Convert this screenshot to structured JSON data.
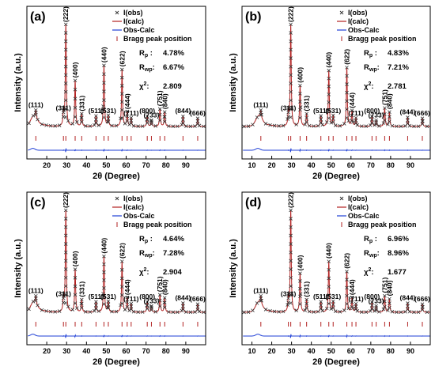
{
  "colors": {
    "obs": "#333333",
    "calc": "#b22222",
    "diff": "#1f3fd6",
    "bragg": "#b22222"
  },
  "legend": {
    "obs": "I(obs)",
    "calc": "I(calc)",
    "diff": "Obs-Calc",
    "bragg": "Bragg peak position"
  },
  "chart_data": [
    {
      "type": "line",
      "panel_label": "(a)",
      "xlabel": "2θ (Degree)",
      "ylabel": "Intensity (a.u.)",
      "xlim": [
        10,
        100
      ],
      "xticks": [
        20,
        30,
        40,
        50,
        60,
        70,
        80,
        90
      ],
      "series": [
        {
          "name": "I(obs)",
          "marker": "x"
        },
        {
          "name": "I(calc)",
          "line": "solid"
        },
        {
          "name": "Obs-Calc",
          "line": "solid"
        },
        {
          "name": "Bragg peak position",
          "marker": "|"
        }
      ],
      "peaks": [
        {
          "hkl": "(111)",
          "x": 14.5,
          "height": 0.07
        },
        {
          "hkl": "(311)",
          "x": 28.4,
          "height": 0.13
        },
        {
          "hkl": "(222)",
          "x": 29.6,
          "height": 1.0
        },
        {
          "hkl": "(400)",
          "x": 34.3,
          "height": 0.45
        },
        {
          "hkl": "(331)",
          "x": 37.6,
          "height": 0.12
        },
        {
          "hkl": "(511)",
          "x": 44.8,
          "height": 0.1
        },
        {
          "hkl": "(440)",
          "x": 48.8,
          "height": 0.6
        },
        {
          "hkl": "(531)",
          "x": 51.0,
          "height": 0.1
        },
        {
          "hkl": "(622)",
          "x": 57.9,
          "height": 0.56
        },
        {
          "hkl": "(444)",
          "x": 60.5,
          "height": 0.14
        },
        {
          "hkl": "(711)",
          "x": 62.5,
          "height": 0.08
        },
        {
          "hkl": "(800)",
          "x": 70.6,
          "height": 0.1
        },
        {
          "hkl": "(733)",
          "x": 72.7,
          "height": 0.06
        },
        {
          "hkl": "(751)",
          "x": 77.0,
          "height": 0.17
        },
        {
          "hkl": "(840)",
          "x": 79.4,
          "height": 0.14
        },
        {
          "hkl": "(844)",
          "x": 88.6,
          "height": 0.1
        },
        {
          "hkl": "(666)",
          "x": 96.0,
          "height": 0.08
        }
      ],
      "stats": {
        "Rp": "4.78%",
        "Rwp": "6.67%",
        "chi2": "2.809"
      }
    },
    {
      "type": "line",
      "panel_label": "(b)",
      "xlabel": "2θ (Degree)",
      "ylabel": "Intensity (a.u.)",
      "xlim": [
        5,
        100
      ],
      "xticks": [
        10,
        20,
        30,
        40,
        50,
        60,
        70,
        80,
        90
      ],
      "series": [
        {
          "name": "I(obs)",
          "marker": "x"
        },
        {
          "name": "I(calc)",
          "line": "solid"
        },
        {
          "name": "Obs-Calc",
          "line": "solid"
        },
        {
          "name": "Bragg peak position",
          "marker": "|"
        }
      ],
      "peaks": [
        {
          "hkl": "(111)",
          "x": 14.5,
          "height": 0.07
        },
        {
          "hkl": "(311)",
          "x": 28.4,
          "height": 0.13
        },
        {
          "hkl": "(222)",
          "x": 29.6,
          "height": 1.0
        },
        {
          "hkl": "(400)",
          "x": 34.3,
          "height": 0.4
        },
        {
          "hkl": "(331)",
          "x": 37.6,
          "height": 0.12
        },
        {
          "hkl": "(511)",
          "x": 44.8,
          "height": 0.1
        },
        {
          "hkl": "(440)",
          "x": 48.8,
          "height": 0.55
        },
        {
          "hkl": "(531)",
          "x": 51.0,
          "height": 0.1
        },
        {
          "hkl": "(622)",
          "x": 57.9,
          "height": 0.58
        },
        {
          "hkl": "(444)",
          "x": 60.5,
          "height": 0.15
        },
        {
          "hkl": "(711)",
          "x": 62.5,
          "height": 0.08
        },
        {
          "hkl": "(800)",
          "x": 70.6,
          "height": 0.1
        },
        {
          "hkl": "(733)",
          "x": 72.7,
          "height": 0.06
        },
        {
          "hkl": "(751)",
          "x": 77.0,
          "height": 0.18
        },
        {
          "hkl": "(840)",
          "x": 79.4,
          "height": 0.14
        },
        {
          "hkl": "(844)",
          "x": 88.6,
          "height": 0.09
        },
        {
          "hkl": "(666)",
          "x": 96.0,
          "height": 0.08
        }
      ],
      "stats": {
        "Rp": "4.83%",
        "Rwp": "7.21%",
        "chi2": "2.781"
      }
    },
    {
      "type": "line",
      "panel_label": "(c)",
      "xlabel": "2θ (Degree)",
      "ylabel": "Intensity (a.u.)",
      "xlim": [
        10,
        100
      ],
      "xticks": [
        20,
        30,
        40,
        50,
        60,
        70,
        80,
        90
      ],
      "series": [
        {
          "name": "I(obs)",
          "marker": "x"
        },
        {
          "name": "I(calc)",
          "line": "solid"
        },
        {
          "name": "Obs-Calc",
          "line": "solid"
        },
        {
          "name": "Bragg peak position",
          "marker": "|"
        }
      ],
      "peaks": [
        {
          "hkl": "(111)",
          "x": 14.5,
          "height": 0.07
        },
        {
          "hkl": "(311)",
          "x": 28.4,
          "height": 0.13
        },
        {
          "hkl": "(222)",
          "x": 29.6,
          "height": 1.0
        },
        {
          "hkl": "(400)",
          "x": 34.3,
          "height": 0.42
        },
        {
          "hkl": "(331)",
          "x": 37.6,
          "height": 0.12
        },
        {
          "hkl": "(511)",
          "x": 44.8,
          "height": 0.1
        },
        {
          "hkl": "(440)",
          "x": 48.8,
          "height": 0.55
        },
        {
          "hkl": "(531)",
          "x": 51.0,
          "height": 0.1
        },
        {
          "hkl": "(622)",
          "x": 57.9,
          "height": 0.5
        },
        {
          "hkl": "(444)",
          "x": 60.5,
          "height": 0.14
        },
        {
          "hkl": "(711)",
          "x": 62.5,
          "height": 0.08
        },
        {
          "hkl": "(800)",
          "x": 70.6,
          "height": 0.1
        },
        {
          "hkl": "(733)",
          "x": 72.7,
          "height": 0.06
        },
        {
          "hkl": "(751)",
          "x": 77.0,
          "height": 0.17
        },
        {
          "hkl": "(840)",
          "x": 79.4,
          "height": 0.14
        },
        {
          "hkl": "(844)",
          "x": 88.6,
          "height": 0.09
        },
        {
          "hkl": "(666)",
          "x": 96.0,
          "height": 0.08
        }
      ],
      "stats": {
        "Rp": "4.64%",
        "Rwp": "7.28%",
        "chi2": "2.904"
      }
    },
    {
      "type": "line",
      "panel_label": "(d)",
      "xlabel": "2θ (Degree)",
      "ylabel": "Intensity (a.u.)",
      "xlim": [
        5,
        100
      ],
      "xticks": [
        10,
        20,
        30,
        40,
        50,
        60,
        70,
        80,
        90
      ],
      "series": [
        {
          "name": "I(obs)",
          "marker": "x"
        },
        {
          "name": "I(calc)",
          "line": "solid"
        },
        {
          "name": "Obs-Calc",
          "line": "solid"
        },
        {
          "name": "Bragg peak position",
          "marker": "|"
        }
      ],
      "peaks": [
        {
          "hkl": "(111)",
          "x": 14.5,
          "height": 0.07
        },
        {
          "hkl": "(311)",
          "x": 28.4,
          "height": 0.13
        },
        {
          "hkl": "(222)",
          "x": 29.6,
          "height": 1.0
        },
        {
          "hkl": "(400)",
          "x": 34.3,
          "height": 0.38
        },
        {
          "hkl": "(331)",
          "x": 37.6,
          "height": 0.12
        },
        {
          "hkl": "(511)",
          "x": 44.8,
          "height": 0.1
        },
        {
          "hkl": "(440)",
          "x": 48.8,
          "height": 0.5
        },
        {
          "hkl": "(531)",
          "x": 51.0,
          "height": 0.1
        },
        {
          "hkl": "(622)",
          "x": 57.9,
          "height": 0.4
        },
        {
          "hkl": "(444)",
          "x": 60.5,
          "height": 0.14
        },
        {
          "hkl": "(711)",
          "x": 62.5,
          "height": 0.08
        },
        {
          "hkl": "(800)",
          "x": 70.6,
          "height": 0.1
        },
        {
          "hkl": "(733)",
          "x": 72.7,
          "height": 0.06
        },
        {
          "hkl": "(751)",
          "x": 77.0,
          "height": 0.16
        },
        {
          "hkl": "(840)",
          "x": 79.4,
          "height": 0.13
        },
        {
          "hkl": "(844)",
          "x": 88.6,
          "height": 0.09
        },
        {
          "hkl": "(666)",
          "x": 96.0,
          "height": 0.08
        }
      ],
      "stats": {
        "Rp": "6.96%",
        "Rwp": "8.96%",
        "chi2": "1.677"
      }
    }
  ]
}
